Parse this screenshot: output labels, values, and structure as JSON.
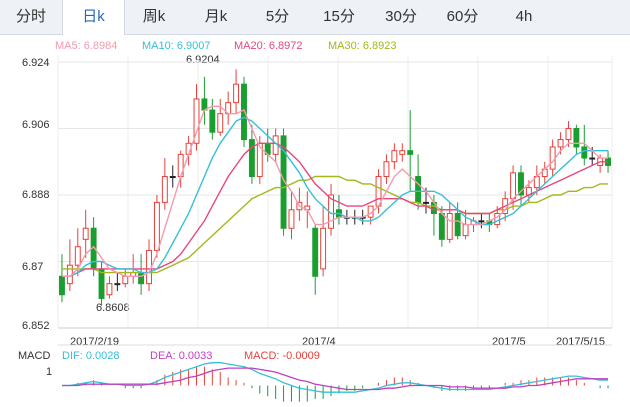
{
  "tabs": [
    {
      "label": "分时",
      "active": false
    },
    {
      "label": "日k",
      "active": true
    },
    {
      "label": "周k",
      "active": false
    },
    {
      "label": "月k",
      "active": false
    },
    {
      "label": "5分",
      "active": false
    },
    {
      "label": "15分",
      "active": false
    },
    {
      "label": "30分",
      "active": false
    },
    {
      "label": "60分",
      "active": false
    },
    {
      "label": "4h",
      "active": false
    }
  ],
  "ma_legend": {
    "ma5": "MA5: 6.8984",
    "ma10": "MA10: 6.9007",
    "ma20": "MA20: 6.8972",
    "ma30": "MA30: 6.8923"
  },
  "annotations": {
    "high": "6.9204",
    "low": "6.8608"
  },
  "macd_legend": {
    "name": "MACD",
    "dif": "DIF: 0.0028",
    "dea": "DEA: 0.0033",
    "macd": "MACD: -0.0009",
    "tick": "1"
  },
  "colors": {
    "up": "#e8413a",
    "down": "#1a9e2f",
    "ma5": "#f49ab0",
    "ma10": "#36c0d8",
    "ma20": "#e8467f",
    "ma30": "#a3b81a",
    "accent": "#2a67b8"
  },
  "chart_data": {
    "type": "candlestick",
    "y_ticks": [
      "6.924",
      "6.906",
      "6.888",
      "6.87",
      "6.852"
    ],
    "ylim": [
      6.852,
      6.924
    ],
    "x_labels": [
      "2017/2/19",
      "2017/4",
      "2017/5",
      "2017/5/15"
    ],
    "grid": true,
    "candles": [
      [
        6.866,
        6.872,
        6.861,
        6.859
      ],
      [
        6.864,
        6.876,
        6.869,
        6.862
      ],
      [
        6.869,
        6.879,
        6.874,
        6.866
      ],
      [
        6.876,
        6.884,
        6.879,
        6.871
      ],
      [
        6.879,
        6.882,
        6.868,
        6.866
      ],
      [
        6.868,
        6.87,
        6.86,
        6.858
      ],
      [
        6.861,
        6.866,
        6.864,
        6.86
      ],
      [
        6.864,
        6.867,
        6.864,
        6.862
      ],
      [
        6.864,
        6.868,
        6.866,
        6.863
      ],
      [
        6.866,
        6.872,
        6.867,
        6.864
      ],
      [
        6.867,
        6.872,
        6.864,
        6.861
      ],
      [
        6.864,
        6.876,
        6.873,
        6.862
      ],
      [
        6.873,
        6.888,
        6.886,
        6.871
      ],
      [
        6.886,
        6.898,
        6.893,
        6.884
      ],
      [
        6.893,
        6.896,
        6.893,
        6.89
      ],
      [
        6.893,
        6.9,
        6.899,
        6.89
      ],
      [
        6.899,
        6.904,
        6.902,
        6.896
      ],
      [
        6.902,
        6.918,
        6.914,
        6.9
      ],
      [
        6.914,
        6.92,
        6.911,
        6.907
      ],
      [
        6.911,
        6.914,
        6.905,
        6.903
      ],
      [
        6.905,
        6.914,
        6.91,
        6.904
      ],
      [
        6.91,
        6.916,
        6.913,
        6.907
      ],
      [
        6.913,
        6.922,
        6.918,
        6.91
      ],
      [
        6.918,
        6.92,
        6.903,
        6.901
      ],
      [
        6.903,
        6.907,
        6.893,
        6.891
      ],
      [
        6.893,
        6.904,
        6.902,
        6.891
      ],
      [
        6.902,
        6.906,
        6.899,
        6.897
      ],
      [
        6.899,
        6.906,
        6.904,
        6.897
      ],
      [
        6.904,
        6.906,
        6.879,
        6.877
      ],
      [
        6.879,
        6.889,
        6.884,
        6.876
      ],
      [
        6.884,
        6.89,
        6.886,
        6.881
      ],
      [
        6.884,
        6.889,
        6.885,
        6.879
      ],
      [
        6.879,
        6.88,
        6.866,
        6.861
      ],
      [
        6.868,
        6.885,
        6.879,
        6.866
      ],
      [
        6.879,
        6.891,
        6.888,
        6.877
      ],
      [
        6.884,
        6.888,
        6.882,
        6.88
      ],
      [
        6.882,
        6.884,
        6.882,
        6.88
      ],
      [
        6.882,
        6.884,
        6.882,
        6.88
      ],
      [
        6.882,
        6.884,
        6.882,
        6.88
      ],
      [
        6.882,
        6.885,
        6.885,
        6.88
      ],
      [
        6.885,
        6.895,
        6.893,
        6.883
      ],
      [
        6.893,
        6.899,
        6.897,
        6.891
      ],
      [
        6.897,
        6.902,
        6.9,
        6.895
      ],
      [
        6.899,
        6.902,
        6.9,
        6.897
      ],
      [
        6.9,
        6.911,
        6.899,
        6.889
      ],
      [
        6.893,
        6.899,
        6.886,
        6.884
      ],
      [
        6.886,
        6.89,
        6.886,
        6.883
      ],
      [
        6.886,
        6.888,
        6.883,
        6.877
      ],
      [
        6.883,
        6.885,
        6.876,
        6.874
      ],
      [
        6.876,
        6.886,
        6.883,
        6.875
      ],
      [
        6.883,
        6.886,
        6.877,
        6.876
      ],
      [
        6.877,
        6.884,
        6.88,
        6.876
      ],
      [
        6.88,
        6.882,
        6.881,
        6.878
      ],
      [
        6.881,
        6.883,
        6.881,
        6.879
      ],
      [
        6.881,
        6.883,
        6.88,
        6.878
      ],
      [
        6.88,
        6.885,
        6.883,
        6.879
      ],
      [
        6.883,
        6.889,
        6.887,
        6.881
      ],
      [
        6.887,
        6.896,
        6.894,
        6.884
      ],
      [
        6.894,
        6.896,
        6.888,
        6.885
      ],
      [
        6.888,
        6.892,
        6.89,
        6.886
      ],
      [
        6.89,
        6.896,
        6.893,
        6.888
      ],
      [
        6.893,
        6.897,
        6.895,
        6.891
      ],
      [
        6.895,
        6.903,
        6.901,
        6.893
      ],
      [
        6.901,
        6.905,
        6.903,
        6.899
      ],
      [
        6.903,
        6.908,
        6.906,
        6.901
      ],
      [
        6.906,
        6.907,
        6.901,
        6.899
      ],
      [
        6.901,
        6.907,
        6.898,
        6.896
      ],
      [
        6.898,
        6.901,
        6.898,
        6.896
      ],
      [
        6.896,
        6.899,
        6.898,
        6.894
      ],
      [
        6.898,
        6.9,
        6.896,
        6.894
      ]
    ],
    "ma5": [
      6.866,
      6.866,
      6.868,
      6.872,
      6.874,
      6.871,
      6.868,
      6.867,
      6.866,
      6.866,
      6.866,
      6.867,
      6.872,
      6.879,
      6.886,
      6.893,
      6.899,
      6.905,
      6.911,
      6.912,
      6.912,
      6.91,
      6.91,
      6.911,
      6.906,
      6.901,
      6.899,
      6.897,
      6.892,
      6.889,
      6.885,
      6.884,
      6.88,
      6.88,
      6.881,
      6.882,
      6.882,
      6.882,
      6.882,
      6.883,
      6.885,
      6.889,
      6.893,
      6.895,
      6.893,
      6.891,
      6.889,
      6.886,
      6.883,
      6.881,
      6.881,
      6.88,
      6.88,
      6.88,
      6.881,
      6.882,
      6.884,
      6.887,
      6.889,
      6.891,
      6.893,
      6.895,
      6.897,
      6.9,
      6.902,
      6.902,
      6.902,
      6.9,
      6.898,
      6.898
    ],
    "ma10": [
      6.866,
      6.866,
      6.867,
      6.869,
      6.87,
      6.87,
      6.869,
      6.868,
      6.868,
      6.868,
      6.867,
      6.867,
      6.868,
      6.871,
      6.875,
      6.879,
      6.883,
      6.888,
      6.893,
      6.898,
      6.902,
      6.905,
      6.908,
      6.909,
      6.908,
      6.906,
      6.904,
      6.902,
      6.9,
      6.897,
      6.894,
      6.89,
      6.887,
      6.885,
      6.883,
      6.883,
      6.882,
      6.882,
      6.881,
      6.881,
      6.882,
      6.884,
      6.886,
      6.888,
      6.889,
      6.889,
      6.889,
      6.889,
      6.888,
      6.886,
      6.884,
      6.882,
      6.881,
      6.88,
      6.88,
      6.881,
      6.882,
      6.883,
      6.885,
      6.887,
      6.889,
      6.891,
      6.893,
      6.895,
      6.897,
      6.899,
      6.9,
      6.9,
      6.9,
      6.9
    ],
    "ma20": [
      6.866,
      6.866,
      6.867,
      6.868,
      6.868,
      6.868,
      6.868,
      6.868,
      6.868,
      6.868,
      6.868,
      6.868,
      6.868,
      6.869,
      6.87,
      6.872,
      6.875,
      6.878,
      6.881,
      6.885,
      6.889,
      6.893,
      6.896,
      6.899,
      6.901,
      6.902,
      6.902,
      6.902,
      6.901,
      6.899,
      6.897,
      6.894,
      6.891,
      6.889,
      6.887,
      6.886,
      6.885,
      6.885,
      6.885,
      6.886,
      6.887,
      6.887,
      6.887,
      6.887,
      6.886,
      6.885,
      6.885,
      6.884,
      6.884,
      6.884,
      6.884,
      6.883,
      6.883,
      6.883,
      6.883,
      6.884,
      6.885,
      6.886,
      6.887,
      6.888,
      6.889,
      6.89,
      6.891,
      6.892,
      6.893,
      6.894,
      6.895,
      6.896,
      6.897,
      6.897
    ],
    "ma30": [
      6.868,
      6.868,
      6.868,
      6.868,
      6.868,
      6.867,
      6.867,
      6.867,
      6.867,
      6.867,
      6.867,
      6.867,
      6.867,
      6.868,
      6.869,
      6.87,
      6.871,
      6.873,
      6.875,
      6.877,
      6.879,
      6.881,
      6.883,
      6.885,
      6.887,
      6.888,
      6.889,
      6.89,
      6.89,
      6.891,
      6.892,
      6.892,
      6.893,
      6.893,
      6.893,
      6.893,
      6.892,
      6.892,
      6.891,
      6.891,
      6.89,
      6.889,
      6.888,
      6.887,
      6.886,
      6.886,
      6.885,
      6.885,
      6.884,
      6.884,
      6.884,
      6.883,
      6.883,
      6.883,
      6.883,
      6.884,
      6.884,
      6.885,
      6.885,
      6.886,
      6.886,
      6.887,
      6.888,
      6.888,
      6.889,
      6.889,
      6.89,
      6.89,
      6.891,
      6.891
    ],
    "macd_panel": {
      "dif": [
        0.0,
        0.0,
        0.1,
        0.2,
        0.3,
        0.2,
        0.1,
        0.1,
        0.0,
        0.0,
        0.0,
        0.1,
        0.3,
        0.6,
        0.8,
        1.0,
        1.2,
        1.4,
        1.6,
        1.7,
        1.7,
        1.6,
        1.5,
        1.4,
        1.2,
        0.9,
        0.7,
        0.5,
        0.2,
        0.0,
        -0.2,
        -0.3,
        -0.4,
        -0.5,
        -0.5,
        -0.5,
        -0.5,
        -0.5,
        -0.4,
        -0.3,
        -0.2,
        0.0,
        0.1,
        0.2,
        0.2,
        0.1,
        0.0,
        -0.1,
        -0.2,
        -0.3,
        -0.3,
        -0.3,
        -0.3,
        -0.3,
        -0.3,
        -0.2,
        -0.1,
        0.0,
        0.1,
        0.2,
        0.3,
        0.4,
        0.5,
        0.6,
        0.7,
        0.7,
        0.6,
        0.5,
        0.4,
        0.4
      ],
      "dea": [
        0.0,
        0.0,
        0.0,
        0.1,
        0.1,
        0.1,
        0.1,
        0.1,
        0.1,
        0.1,
        0.1,
        0.1,
        0.1,
        0.2,
        0.3,
        0.4,
        0.6,
        0.7,
        0.9,
        1.1,
        1.2,
        1.3,
        1.3,
        1.3,
        1.3,
        1.2,
        1.1,
        1.0,
        0.8,
        0.6,
        0.4,
        0.3,
        0.1,
        0.0,
        -0.1,
        -0.2,
        -0.3,
        -0.3,
        -0.3,
        -0.3,
        -0.3,
        -0.2,
        -0.2,
        -0.1,
        0.0,
        0.0,
        0.0,
        0.0,
        0.0,
        -0.1,
        -0.1,
        -0.1,
        -0.2,
        -0.2,
        -0.2,
        -0.2,
        -0.2,
        -0.1,
        -0.1,
        0.0,
        0.0,
        0.1,
        0.2,
        0.3,
        0.4,
        0.5,
        0.5,
        0.5,
        0.5,
        0.5
      ],
      "ylim": [
        -1.6,
        1.9
      ]
    }
  }
}
